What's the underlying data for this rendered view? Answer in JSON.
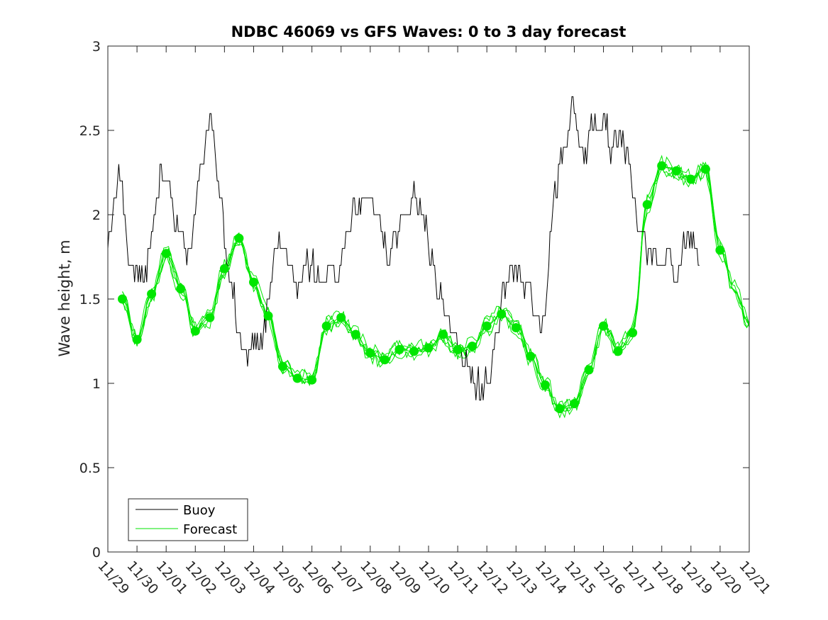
{
  "chart_data": {
    "type": "line",
    "title": "NDBC 46069 vs GFS Waves: 0 to 3 day forecast",
    "xlabel": "",
    "ylabel": "Wave height, m",
    "xlim": [
      0,
      22
    ],
    "ylim": [
      0,
      3
    ],
    "x_tick_labels": [
      "11/29",
      "11/30",
      "12/01",
      "12/02",
      "12/03",
      "12/04",
      "12/05",
      "12/06",
      "12/07",
      "12/08",
      "12/09",
      "12/10",
      "12/11",
      "12/12",
      "12/13",
      "12/14",
      "12/15",
      "12/16",
      "12/17",
      "12/18",
      "12/19",
      "12/20",
      "12/21"
    ],
    "y_ticks": [
      0,
      0.5,
      1,
      1.5,
      2,
      2.5,
      3
    ],
    "y_tick_labels": [
      "0",
      "0.5",
      "1",
      "1.5",
      "2",
      "2.5",
      "3"
    ],
    "grid": false,
    "legend_position": "bottom-left",
    "legend": [
      {
        "label": "Buoy",
        "color": "#000000"
      },
      {
        "label": "Forecast",
        "color": "#00e600"
      }
    ],
    "series": [
      {
        "name": "Buoy",
        "color": "#000000",
        "x": [
          0,
          0.25,
          0.4,
          0.5,
          0.7,
          0.8,
          0.9,
          1.0,
          1.2,
          1.5,
          1.8,
          2.0,
          2.2,
          2.5,
          2.7,
          2.9,
          3.0,
          3.2,
          3.4,
          3.5,
          3.7,
          3.9,
          4.0,
          4.2,
          4.4,
          4.6,
          4.8,
          5.0,
          5.2,
          5.4,
          5.6,
          5.8,
          6.0,
          6.2,
          6.4,
          6.6,
          6.8,
          7.0,
          7.3,
          7.6,
          8.0,
          8.4,
          8.8,
          9.0,
          9.3,
          9.6,
          9.9,
          10.2,
          10.5,
          10.8,
          11.0,
          11.3,
          11.6,
          12.0,
          12.4,
          12.8,
          13.0,
          13.3,
          13.6,
          13.9,
          14.2,
          14.5,
          14.8,
          15.0,
          15.3,
          15.6,
          15.8,
          16.0,
          16.3,
          16.6,
          16.9,
          17.1,
          17.3,
          17.6,
          17.9,
          18.0,
          18.3,
          18.6,
          18.9,
          19.2,
          19.5,
          19.8,
          20.0,
          20.2,
          20.3
        ],
        "y": [
          1.8,
          2.1,
          2.25,
          2.2,
          1.8,
          1.7,
          1.65,
          1.65,
          1.6,
          1.8,
          2.2,
          2.15,
          2.1,
          1.9,
          1.75,
          1.9,
          2.1,
          2.3,
          2.55,
          2.6,
          2.3,
          2.1,
          1.8,
          1.6,
          1.4,
          1.2,
          1.15,
          1.2,
          1.25,
          1.35,
          1.6,
          1.8,
          1.85,
          1.8,
          1.6,
          1.65,
          1.75,
          1.7,
          1.6,
          1.65,
          1.7,
          2.0,
          2.1,
          2.1,
          1.9,
          1.8,
          1.85,
          1.95,
          2.1,
          2.0,
          1.85,
          1.6,
          1.4,
          1.2,
          1.05,
          0.95,
          1.0,
          1.25,
          1.55,
          1.7,
          1.6,
          1.5,
          1.4,
          1.45,
          2.1,
          2.4,
          2.55,
          2.6,
          2.3,
          2.5,
          2.45,
          2.55,
          2.4,
          2.5,
          2.25,
          2.1,
          1.9,
          1.75,
          1.7,
          1.75,
          1.7,
          1.8,
          1.85,
          1.8,
          1.75
        ]
      },
      {
        "name": "Forecast",
        "color": "#00e600",
        "x": [
          0.5,
          1.0,
          1.5,
          2.0,
          2.5,
          3.0,
          3.5,
          4.0,
          4.5,
          5.0,
          5.5,
          6.0,
          6.5,
          7.0,
          7.5,
          8.0,
          8.5,
          9.0,
          9.5,
          10.0,
          10.5,
          11.0,
          11.5,
          12.0,
          12.5,
          13.0,
          13.5,
          14.0,
          14.5,
          15.0,
          15.5,
          16.0,
          16.5,
          17.0,
          17.5,
          18.0,
          18.5,
          19.0,
          19.5,
          20.0,
          20.5,
          21.0,
          21.5,
          22.0
        ],
        "y": [
          1.5,
          1.26,
          1.53,
          1.77,
          1.56,
          1.31,
          1.39,
          1.68,
          1.86,
          1.6,
          1.4,
          1.1,
          1.03,
          1.02,
          1.34,
          1.39,
          1.29,
          1.18,
          1.14,
          1.2,
          1.19,
          1.21,
          1.29,
          1.2,
          1.22,
          1.34,
          1.41,
          1.33,
          1.16,
          0.99,
          0.85,
          0.88,
          1.08,
          1.34,
          1.19,
          1.3,
          2.06,
          2.29,
          2.26,
          2.21,
          2.27,
          1.79,
          1.55,
          1.35
        ]
      }
    ],
    "forecast_markers": {
      "x": [
        0.5,
        1.0,
        1.5,
        2.0,
        2.5,
        3.0,
        3.5,
        4.0,
        4.5,
        5.0,
        5.5,
        6.0,
        6.5,
        7.0,
        7.5,
        8.0,
        8.5,
        9.0,
        9.5,
        10.0,
        10.5,
        11.0,
        11.5,
        12.0,
        12.5,
        13.0,
        13.5,
        14.0,
        14.5,
        15.0,
        15.5,
        16.0,
        16.5,
        17.0,
        17.5,
        18.0,
        18.5,
        19.0,
        19.5,
        20.0,
        20.5,
        21.0
      ],
      "y": [
        1.5,
        1.26,
        1.53,
        1.77,
        1.56,
        1.31,
        1.39,
        1.68,
        1.86,
        1.6,
        1.4,
        1.1,
        1.03,
        1.02,
        1.34,
        1.39,
        1.29,
        1.18,
        1.14,
        1.2,
        1.19,
        1.21,
        1.29,
        1.2,
        1.22,
        1.34,
        1.41,
        1.33,
        1.16,
        0.99,
        0.85,
        0.88,
        1.08,
        1.34,
        1.19,
        1.3,
        2.06,
        2.29,
        2.26,
        2.21,
        2.27,
        1.79
      ]
    }
  }
}
